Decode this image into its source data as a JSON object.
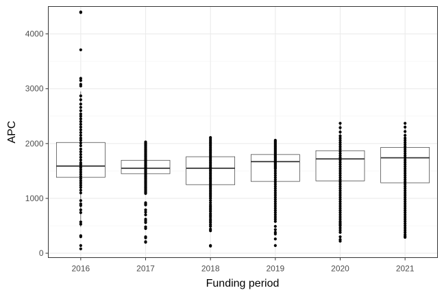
{
  "chart_data": {
    "type": "boxplot",
    "xlabel": "Funding period",
    "ylabel": "APC",
    "categories": [
      "2016",
      "2017",
      "2018",
      "2019",
      "2020",
      "2021"
    ],
    "ylim": [
      -80,
      4500
    ],
    "yticks": [
      0,
      1000,
      2000,
      3000,
      4000
    ],
    "grid": true,
    "theme": "bw",
    "boxes": [
      {
        "category": "2016",
        "q1": 1385,
        "median": 1590,
        "q3": 2020,
        "whisker_low": 480,
        "whisker_high": 2950
      },
      {
        "category": "2017",
        "q1": 1450,
        "median": 1550,
        "q3": 1695,
        "whisker_low": 1090,
        "whisker_high": 2040
      },
      {
        "category": "2018",
        "q1": 1250,
        "median": 1550,
        "q3": 1760,
        "whisker_low": 490,
        "whisker_high": 2110
      },
      {
        "category": "2019",
        "q1": 1310,
        "median": 1670,
        "q3": 1800,
        "whisker_low": 570,
        "whisker_high": 2060
      },
      {
        "category": "2020",
        "q1": 1320,
        "median": 1720,
        "q3": 1870,
        "whisker_low": 500,
        "whisker_high": 2370
      },
      {
        "category": "2021",
        "q1": 1285,
        "median": 1740,
        "q3": 1930,
        "whisker_low": 300,
        "whisker_high": 2370
      }
    ],
    "points": [
      {
        "category": "2016",
        "values": [
          4400,
          4390,
          3710,
          3190,
          3150,
          3080,
          3050,
          2870,
          2800,
          2720,
          2660,
          2600,
          2540,
          2500,
          2450,
          2400,
          2350,
          2300,
          2250,
          2200,
          2150,
          2100,
          2060,
          2010,
          1960,
          1900,
          1850,
          1800,
          1750,
          1700,
          1650,
          1620,
          1590,
          1560,
          1520,
          1480,
          1440,
          1400,
          1360,
          1320,
          1280,
          1240,
          1200,
          1150,
          1100,
          960,
          900,
          870,
          790,
          740,
          570,
          530,
          320,
          300,
          140,
          80
        ]
      },
      {
        "category": "2017",
        "values": [
          2030,
          2010,
          1990,
          1970,
          1950,
          1930,
          1910,
          1890,
          1870,
          1850,
          1830,
          1810,
          1790,
          1770,
          1750,
          1730,
          1710,
          1690,
          1670,
          1650,
          1630,
          1610,
          1590,
          1570,
          1550,
          1530,
          1510,
          1490,
          1470,
          1450,
          1430,
          1410,
          1390,
          1370,
          1350,
          1330,
          1310,
          1290,
          1270,
          1250,
          1230,
          1210,
          1190,
          1170,
          1150,
          1130,
          1110,
          1090,
          920,
          900,
          880,
          790,
          750,
          700,
          620,
          590,
          560,
          480,
          450,
          300,
          280,
          210,
          200
        ]
      },
      {
        "category": "2018",
        "values": [
          2110,
          2080,
          2050,
          2020,
          1990,
          1960,
          1930,
          1900,
          1870,
          1840,
          1810,
          1780,
          1750,
          1720,
          1690,
          1660,
          1630,
          1600,
          1570,
          1540,
          1510,
          1480,
          1450,
          1420,
          1390,
          1360,
          1330,
          1300,
          1270,
          1240,
          1210,
          1180,
          1150,
          1120,
          1090,
          1060,
          1030,
          1000,
          960,
          920,
          880,
          850,
          820,
          790,
          760,
          720,
          690,
          660,
          620,
          590,
          560,
          520,
          490,
          440,
          410,
          140,
          130
        ]
      },
      {
        "category": "2019",
        "values": [
          2060,
          2040,
          2020,
          2000,
          1980,
          1960,
          1940,
          1920,
          1900,
          1880,
          1860,
          1840,
          1820,
          1800,
          1780,
          1760,
          1740,
          1720,
          1700,
          1680,
          1660,
          1640,
          1620,
          1600,
          1580,
          1560,
          1540,
          1500,
          1460,
          1420,
          1380,
          1340,
          1300,
          1260,
          1220,
          1180,
          1140,
          1100,
          1060,
          1020,
          980,
          940,
          900,
          860,
          820,
          780,
          740,
          700,
          660,
          620,
          580,
          490,
          430,
          380,
          350,
          260,
          140
        ]
      },
      {
        "category": "2020",
        "values": [
          2370,
          2290,
          2210,
          2140,
          2100,
          2060,
          2020,
          1980,
          1940,
          1900,
          1860,
          1820,
          1780,
          1740,
          1700,
          1660,
          1620,
          1580,
          1540,
          1500,
          1460,
          1420,
          1380,
          1340,
          1300,
          1260,
          1220,
          1180,
          1140,
          1100,
          1060,
          1020,
          980,
          940,
          900,
          860,
          820,
          780,
          740,
          700,
          660,
          620,
          580,
          550,
          520,
          500,
          460,
          420,
          380,
          300,
          250,
          220
        ]
      },
      {
        "category": "2021",
        "values": [
          2370,
          2300,
          2220,
          2150,
          2100,
          2060,
          2020,
          1980,
          1940,
          1900,
          1860,
          1820,
          1780,
          1740,
          1700,
          1660,
          1620,
          1580,
          1540,
          1500,
          1460,
          1420,
          1380,
          1340,
          1300,
          1260,
          1220,
          1180,
          1140,
          1100,
          1060,
          1020,
          980,
          940,
          900,
          860,
          820,
          780,
          740,
          700,
          660,
          620,
          580,
          540,
          500,
          460,
          420,
          380,
          340,
          310,
          290
        ]
      }
    ]
  }
}
